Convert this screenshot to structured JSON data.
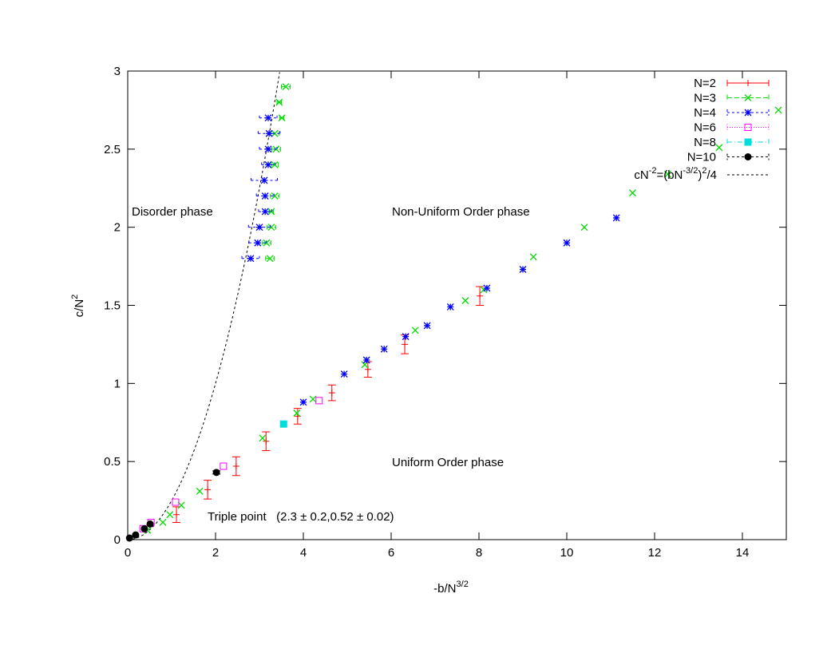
{
  "chart_data": {
    "type": "scatter",
    "title": "",
    "xlabel": "-b/N",
    "xlabel_sup": "3/2",
    "ylabel": "c/N",
    "ylabel_sup": "2",
    "xlim": [
      0,
      15
    ],
    "ylim": [
      0,
      3
    ],
    "xticks": [
      0,
      2,
      4,
      6,
      8,
      10,
      12,
      14
    ],
    "yticks": [
      0,
      0.5,
      1,
      1.5,
      2,
      2.5,
      3
    ],
    "xtick_labels": [
      "0",
      "2",
      "4",
      "6",
      "8",
      "10",
      "12",
      "14"
    ],
    "ytick_labels": [
      "0",
      "0.5",
      "1",
      "1.5",
      "2",
      "2.5",
      "3"
    ],
    "grid": false,
    "legend_position": "top-right",
    "annotations": {
      "disorder": "Disorder phase",
      "nonuniform": "Non-Uniform Order phase",
      "uniform": "Uniform Order phase",
      "triple": "Triple point   (2.3 ± 0.2,0.52 ± 0.02)"
    },
    "series": [
      {
        "name": "N=2",
        "color": "#ff0000",
        "marker": "plus",
        "dash": "",
        "points": [
          [
            1.11,
            0.16,
            0,
            0.05
          ],
          [
            1.82,
            0.32,
            0,
            0.06
          ],
          [
            2.47,
            0.47,
            0,
            0.06
          ],
          [
            3.15,
            0.63,
            0,
            0.06
          ],
          [
            3.87,
            0.79,
            0,
            0.05
          ],
          [
            4.65,
            0.94,
            0,
            0.05
          ],
          [
            5.47,
            1.09,
            0,
            0.05
          ],
          [
            6.31,
            1.25,
            0,
            0.06
          ],
          [
            8.02,
            1.56,
            0,
            0.06
          ]
        ]
      },
      {
        "name": "N=3",
        "color": "#00dd00",
        "marker": "x",
        "dash": "6,3",
        "points": [
          [
            0.45,
            0.06,
            0,
            0
          ],
          [
            0.8,
            0.11,
            0,
            0
          ],
          [
            0.96,
            0.16,
            0,
            0
          ],
          [
            1.22,
            0.22,
            0,
            0
          ],
          [
            1.64,
            0.31,
            0,
            0
          ],
          [
            3.07,
            0.65,
            0,
            0
          ],
          [
            3.85,
            0.81,
            0,
            0
          ],
          [
            4.22,
            0.9,
            0,
            0
          ],
          [
            5.4,
            1.12,
            0,
            0
          ],
          [
            6.55,
            1.34,
            0,
            0
          ],
          [
            7.69,
            1.53,
            0,
            0
          ],
          [
            8.11,
            1.6,
            0,
            0
          ],
          [
            9.24,
            1.81,
            0,
            0
          ],
          [
            10.4,
            2.0,
            0,
            0
          ],
          [
            11.5,
            2.22,
            0,
            0
          ],
          [
            12.3,
            2.34,
            0,
            0
          ],
          [
            13.47,
            2.51,
            0,
            0
          ],
          [
            14.82,
            2.75,
            0,
            0
          ],
          [
            3.6,
            2.9,
            0.1,
            0
          ],
          [
            3.45,
            2.8,
            0.05,
            0
          ],
          [
            3.51,
            2.7,
            0.05,
            0
          ],
          [
            3.35,
            2.6,
            0.1,
            0
          ],
          [
            3.38,
            2.5,
            0.1,
            0
          ],
          [
            3.35,
            2.4,
            0.08,
            0
          ],
          [
            3.35,
            2.2,
            0.1,
            0
          ],
          [
            3.27,
            2.1,
            0.05,
            0
          ],
          [
            3.27,
            2.0,
            0.1,
            0
          ],
          [
            3.16,
            1.9,
            0.1,
            0
          ],
          [
            3.24,
            1.8,
            0.1,
            0
          ]
        ]
      },
      {
        "name": "N=4",
        "color": "#0000ff",
        "marker": "star",
        "dash": "3,3",
        "points": [
          [
            4.0,
            0.88,
            0,
            0
          ],
          [
            4.93,
            1.06,
            0,
            0
          ],
          [
            5.44,
            1.15,
            0,
            0
          ],
          [
            5.84,
            1.22,
            0,
            0
          ],
          [
            6.33,
            1.3,
            0,
            0
          ],
          [
            6.82,
            1.37,
            0,
            0
          ],
          [
            7.35,
            1.49,
            0,
            0
          ],
          [
            8.18,
            1.61,
            0,
            0
          ],
          [
            9.0,
            1.73,
            0,
            0
          ],
          [
            10.0,
            1.9,
            0,
            0
          ],
          [
            11.13,
            2.06,
            0,
            0
          ],
          [
            3.2,
            2.7,
            0.2,
            0
          ],
          [
            3.22,
            2.6,
            0.25,
            0
          ],
          [
            3.2,
            2.5,
            0.2,
            0
          ],
          [
            3.2,
            2.4,
            0.15,
            0
          ],
          [
            3.11,
            2.3,
            0.3,
            0
          ],
          [
            3.13,
            2.2,
            0.2,
            0
          ],
          [
            3.13,
            2.1,
            0.15,
            0
          ],
          [
            3.0,
            2.0,
            0.25,
            0
          ],
          [
            2.96,
            1.9,
            0.2,
            0
          ],
          [
            2.8,
            1.8,
            0.2,
            0
          ]
        ]
      },
      {
        "name": "N=6",
        "color": "#ff00ff",
        "marker": "square-open",
        "dash": "1,2",
        "points": [
          [
            0.35,
            0.07,
            0,
            0
          ],
          [
            0.53,
            0.11,
            0,
            0
          ],
          [
            1.09,
            0.24,
            0,
            0
          ],
          [
            2.18,
            0.47,
            0,
            0
          ],
          [
            4.36,
            0.89,
            0,
            0
          ]
        ]
      },
      {
        "name": "N=8",
        "color": "#00dddd",
        "marker": "square-filled",
        "dash": "6,3,1,3",
        "points": [
          [
            3.55,
            0.74,
            0,
            0
          ]
        ]
      },
      {
        "name": "N=10",
        "color": "#000000",
        "marker": "circle-filled",
        "dash": "3,3",
        "points": [
          [
            0.04,
            0.01,
            0,
            0
          ],
          [
            0.18,
            0.03,
            0,
            0
          ],
          [
            0.38,
            0.07,
            0,
            0
          ],
          [
            0.51,
            0.1,
            0,
            0
          ],
          [
            2.02,
            0.43,
            0,
            0.01
          ]
        ]
      }
    ],
    "curve": {
      "name": "cN",
      "name_sup1": "-2",
      "name_mid": "=(bN",
      "name_sup2": "-3/2",
      "name_end": ")",
      "name_sup3": "2",
      "name_tail": "/4",
      "formula": "y = x^2/4",
      "color": "#000000"
    }
  }
}
